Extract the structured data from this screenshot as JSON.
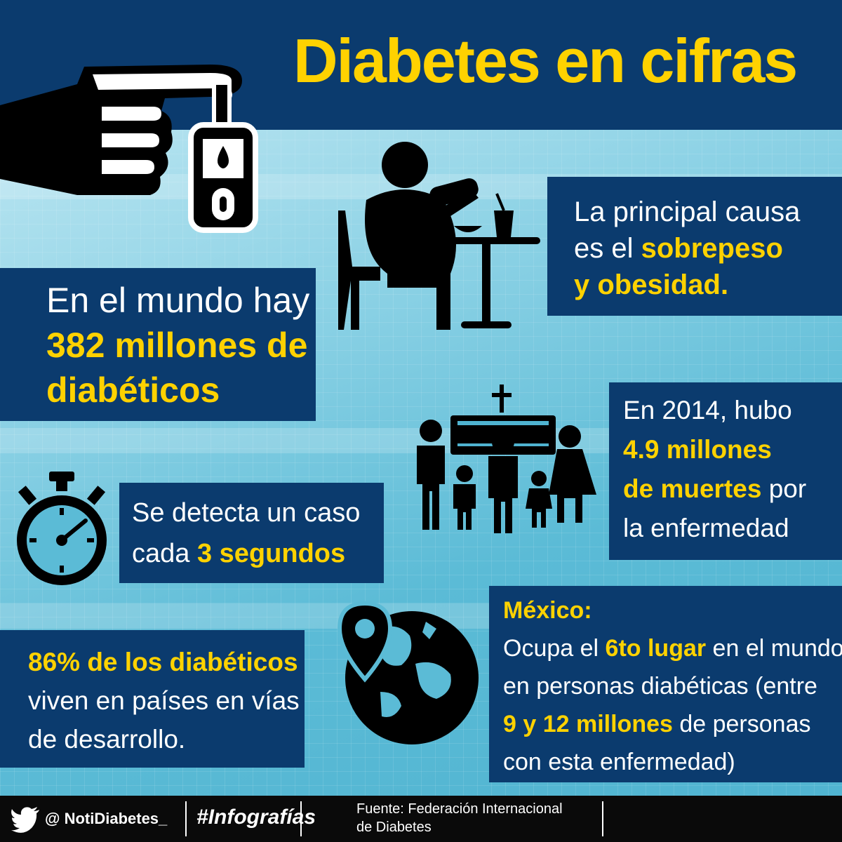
{
  "title": "Diabetes en cifras",
  "colors": {
    "navy": "#0b3b6e",
    "accent_yellow": "#ffd200",
    "background_blue": "#5bbbd6",
    "footer": "#0a0a0a"
  },
  "boxes": {
    "cause": {
      "line1": "La principal causa",
      "line2_pre": "es el ",
      "line2_hl": "sobrepeso",
      "line3_hl": "y obesidad."
    },
    "world": {
      "line1": "En el mundo hay",
      "line2_hl": "382 millones de",
      "line3_hl": "diabéticos"
    },
    "deaths": {
      "line1": "En 2014, hubo",
      "line2_hl": "4.9 millones",
      "line3_hl": "de muertes",
      "line3_post": " por",
      "line4": "la enfermedad"
    },
    "detect": {
      "line1": "Se detecta un caso",
      "line2_pre": "cada ",
      "line2_hl": "3 segundos"
    },
    "developing": {
      "line1_hl": "86% de los diabéticos",
      "line2": "viven en países en vías",
      "line3": "de desarrollo."
    },
    "mexico": {
      "heading": "México:",
      "line1_pre": "Ocupa el ",
      "line1_hl": "6to lugar",
      "line1_post": " en el mundo",
      "line2": "en personas diabéticas (entre",
      "line3_hl": "9 y 12 millones",
      "line3_post": " de personas",
      "line4": "con esta enfermedad)"
    }
  },
  "icons": [
    "hand-glucometer-icon",
    "person-eating-icon",
    "funeral-family-icon",
    "stopwatch-icon",
    "globe-location-icon",
    "twitter-bird-icon"
  ],
  "footer": {
    "handle": "@ NotiDiabetes_",
    "hashtag": "#Infografías",
    "source_line1": "Fuente: Federación Internacional",
    "source_line2": "de Diabetes"
  }
}
